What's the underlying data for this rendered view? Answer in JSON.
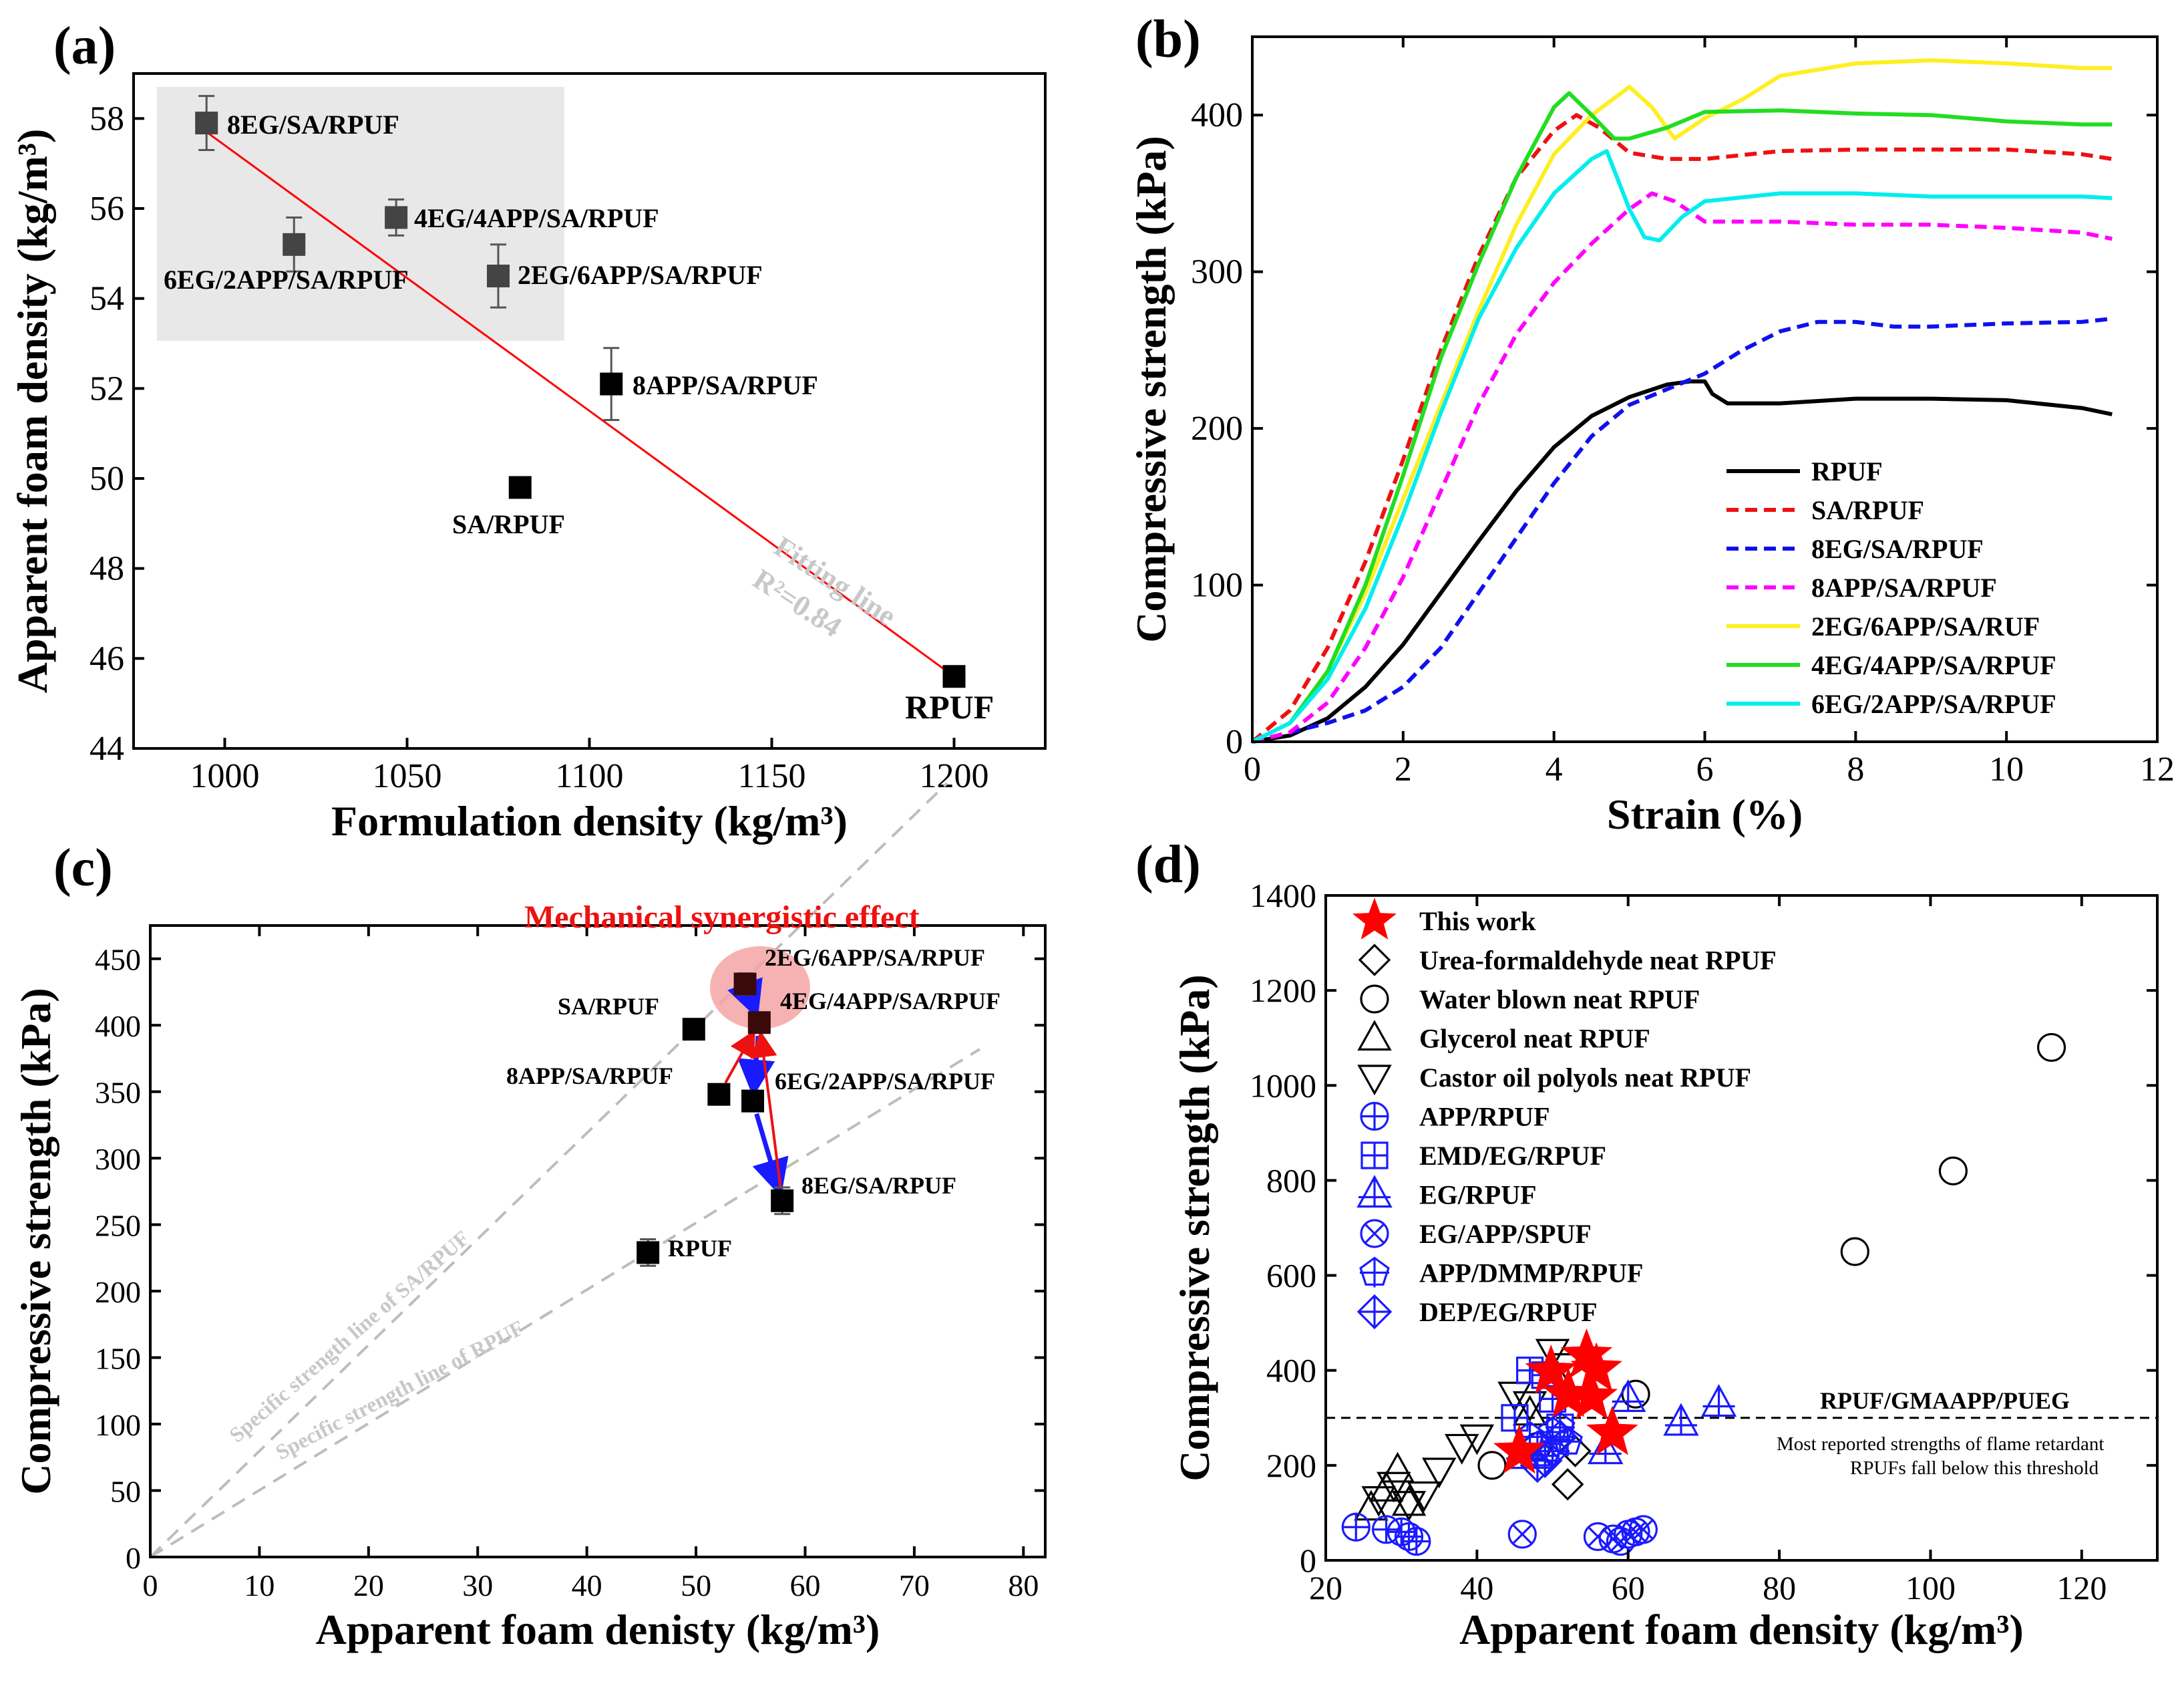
{
  "chart_data": [
    {
      "panel": "(a)",
      "type": "scatter",
      "xlabel": "Formulation density (kg/m³)",
      "ylabel": "Apparent foam density (kg/m³)",
      "xlim": [
        975,
        1225
      ],
      "ylim": [
        44,
        59
      ],
      "xticks": [
        1000,
        1050,
        1100,
        1150,
        1200
      ],
      "yticks": [
        44,
        46,
        48,
        50,
        52,
        54,
        56,
        58
      ],
      "points": [
        {
          "label": "8EG/SA/RPUF",
          "x": 995,
          "y": 57.9,
          "err": 0.6,
          "color": "#444444"
        },
        {
          "label": "6EG/2APP/SA/RPUF",
          "x": 1019,
          "y": 55.2,
          "err": 0.6,
          "color": "#444444"
        },
        {
          "label": "4EG/4APP/SA/RPUF",
          "x": 1047,
          "y": 55.8,
          "err": 0.4,
          "color": "#444444"
        },
        {
          "label": "2EG/6APP/SA/RPUF",
          "x": 1075,
          "y": 54.5,
          "err": 0.7,
          "color": "#444444"
        },
        {
          "label": "8APP/SA/RPUF",
          "x": 1106,
          "y": 52.1,
          "err": 0.8,
          "color": "#000000"
        },
        {
          "label": "SA/RPUF",
          "x": 1081,
          "y": 49.8,
          "err": 0,
          "color": "#000000"
        },
        {
          "label": "RPUF",
          "x": 1200,
          "y": 45.6,
          "err": 0,
          "color": "#000000"
        }
      ],
      "fit_line": {
        "x": [
          995,
          1200
        ],
        "y": [
          57.7,
          45.6
        ],
        "color": "#ff0000"
      },
      "annotations": [
        "Fitting line",
        "R²=0.84"
      ]
    },
    {
      "panel": "(b)",
      "type": "line",
      "xlabel": "Strain (%)",
      "ylabel": "Compressive strength (kPa)",
      "xlim": [
        0,
        12
      ],
      "ylim": [
        0,
        450
      ],
      "xticks": [
        0,
        2,
        4,
        6,
        8,
        10,
        12
      ],
      "yticks": [
        0,
        100,
        200,
        300,
        400
      ],
      "series": [
        {
          "name": "RPUF",
          "color": "#000000",
          "dash": "solid",
          "x": [
            0,
            0.5,
            1,
            1.5,
            2,
            2.5,
            3,
            3.5,
            4,
            4.5,
            5,
            5.5,
            5.8,
            6.0,
            6.1,
            6.3,
            7,
            8,
            9,
            10,
            11,
            11.4
          ],
          "y": [
            0,
            4,
            15,
            35,
            62,
            95,
            128,
            160,
            188,
            208,
            220,
            228,
            230,
            230,
            222,
            216,
            216,
            219,
            219,
            218,
            213,
            209
          ]
        },
        {
          "name": "SA/RPUF",
          "color": "#ee1111",
          "dash": "dashed",
          "x": [
            0,
            0.5,
            1,
            1.5,
            2,
            2.5,
            3,
            3.5,
            4,
            4.3,
            4.6,
            5,
            5.5,
            6,
            7,
            8,
            9,
            10,
            11,
            11.4
          ],
          "y": [
            0,
            20,
            60,
            115,
            180,
            250,
            310,
            360,
            390,
            400,
            392,
            376,
            372,
            372,
            377,
            378,
            378,
            378,
            375,
            372
          ]
        },
        {
          "name": "8EG/SA/RPUF",
          "color": "#1010ee",
          "dash": "dashed",
          "x": [
            0,
            1,
            1.5,
            2,
            2.5,
            3,
            3.5,
            4,
            4.5,
            5,
            5.5,
            6,
            6.5,
            7,
            7.5,
            8,
            8.5,
            9,
            10,
            11,
            11.4
          ],
          "y": [
            0,
            12,
            20,
            35,
            60,
            95,
            130,
            165,
            195,
            215,
            225,
            235,
            250,
            262,
            268,
            268,
            265,
            265,
            267,
            268,
            270
          ]
        },
        {
          "name": "8APP/SA/RPUF",
          "color": "#ff00ff",
          "dash": "dashed",
          "x": [
            0,
            0.5,
            1,
            1.5,
            2,
            2.5,
            3,
            3.5,
            4,
            4.5,
            5,
            5.3,
            5.6,
            6,
            7,
            8,
            9,
            10,
            11,
            11.4
          ],
          "y": [
            0,
            6,
            25,
            60,
            105,
            160,
            215,
            260,
            293,
            318,
            340,
            350,
            345,
            332,
            332,
            330,
            330,
            328,
            325,
            321
          ]
        },
        {
          "name": "2EG/6APP/SA/RUF",
          "color": "#ffee22",
          "dash": "solid",
          "x": [
            0,
            0.5,
            1,
            1.5,
            2,
            2.5,
            3,
            3.5,
            4,
            4.5,
            5,
            5.3,
            5.6,
            6,
            6.5,
            7,
            8,
            9,
            10,
            11,
            11.4
          ],
          "y": [
            0,
            12,
            45,
            95,
            155,
            215,
            275,
            330,
            375,
            400,
            418,
            405,
            385,
            398,
            410,
            425,
            433,
            435,
            433,
            430,
            430
          ]
        },
        {
          "name": "4EG/4APP/SA/RPUF",
          "color": "#22dd22",
          "dash": "solid",
          "x": [
            0,
            0.5,
            1,
            1.5,
            2,
            2.5,
            3,
            3.5,
            4,
            4.2,
            4.5,
            4.8,
            5,
            5.5,
            6,
            7,
            8,
            9,
            10,
            11,
            11.4
          ],
          "y": [
            0,
            12,
            45,
            100,
            170,
            245,
            305,
            360,
            405,
            414,
            400,
            385,
            385,
            392,
            402,
            403,
            401,
            400,
            396,
            394,
            394
          ]
        },
        {
          "name": "6EG/2APP/SA/RPUF",
          "color": "#00eeee",
          "dash": "solid",
          "x": [
            0,
            0.5,
            1,
            1.5,
            2,
            2.5,
            3,
            3.5,
            4,
            4.5,
            4.7,
            5,
            5.2,
            5.4,
            5.7,
            6,
            7,
            8,
            9,
            10,
            11,
            11.4
          ],
          "y": [
            0,
            12,
            40,
            85,
            145,
            210,
            270,
            315,
            350,
            372,
            377,
            340,
            322,
            320,
            335,
            345,
            350,
            350,
            348,
            348,
            348,
            347
          ]
        }
      ]
    },
    {
      "panel": "(c)",
      "type": "scatter",
      "xlabel": "Apparent foam denisty (kg/m³)",
      "ylabel": "Compressive strength (kPa)",
      "xlim": [
        0,
        82
      ],
      "ylim": [
        0,
        475
      ],
      "xticks": [
        0,
        10,
        20,
        30,
        40,
        50,
        60,
        70,
        80
      ],
      "yticks": [
        0,
        50,
        100,
        150,
        200,
        250,
        300,
        350,
        400,
        450
      ],
      "title": "Mechanical synergistic effect",
      "points": [
        {
          "label": "2EG/6APP/SA/RPUF",
          "x": 54.5,
          "y": 431,
          "err": 8,
          "color": "#3a0a0a"
        },
        {
          "label": "4EG/4APP/SA/RPUF",
          "x": 55.8,
          "y": 402,
          "err": 6,
          "color": "#3a0a0a"
        },
        {
          "label": "SA/RPUF",
          "x": 49.8,
          "y": 397,
          "err": 0,
          "color": "#000000"
        },
        {
          "label": "8APP/SA/RPUF",
          "x": 52.1,
          "y": 348,
          "err": 0,
          "color": "#000000"
        },
        {
          "label": "6EG/2APP/SA/RPUF",
          "x": 55.2,
          "y": 343,
          "err": 0,
          "color": "#000000"
        },
        {
          "label": "8EG/SA/RPUF",
          "x": 57.9,
          "y": 268,
          "err": 10,
          "color": "#000000"
        },
        {
          "label": "RPUF",
          "x": 45.6,
          "y": 229,
          "err": 10,
          "color": "#000000"
        }
      ],
      "reference_lines": [
        {
          "label": "Specific strength line of SA/RPUF",
          "x": [
            0,
            73
          ],
          "y": [
            0,
            582
          ]
        },
        {
          "label": "Specific strength line of RPUF",
          "x": [
            0,
            76
          ],
          "y": [
            0,
            382
          ]
        }
      ]
    },
    {
      "panel": "(d)",
      "type": "scatter",
      "xlabel": "Apparent foam density (kg/m³)",
      "ylabel": "Compressive strength (kPa)",
      "xlim": [
        20,
        130
      ],
      "ylim": [
        0,
        1400
      ],
      "xticks": [
        20,
        40,
        60,
        80,
        100,
        120
      ],
      "yticks": [
        0,
        200,
        400,
        600,
        800,
        1000,
        1200,
        1400
      ],
      "threshold": {
        "y": 300,
        "label": "RPUF/GMAAPP/PUEG",
        "note_1": "Most reported strengths of flame retardant",
        "note_2": "RPUFs fall below this threshold"
      },
      "series": [
        {
          "name": "This work",
          "marker": "star",
          "color": "#ff0000",
          "x": [
            45.6,
            49.8,
            52.1,
            54.5,
            55.8,
            55.2,
            57.9
          ],
          "y": [
            229,
            397,
            348,
            431,
            402,
            343,
            268
          ]
        },
        {
          "name": "Urea-formaldehyde neat RPUF",
          "marker": "diamond",
          "color": "#000000",
          "x": [
            52,
            53
          ],
          "y": [
            160,
            230
          ]
        },
        {
          "name": "Water blown neat RPUF",
          "marker": "circle",
          "color": "#000000",
          "x": [
            42,
            48,
            61,
            90,
            103,
            116
          ],
          "y": [
            200,
            240,
            350,
            650,
            820,
            1080
          ]
        },
        {
          "name": "Glycerol neat RPUF",
          "marker": "triangle-up",
          "color": "#000000",
          "x": [
            26,
            28,
            29.5,
            31,
            47
          ],
          "y": [
            110,
            150,
            190,
            120,
            310
          ]
        },
        {
          "name": "Castor oil polyols neat RPUF",
          "marker": "triangle-down",
          "color": "#000000",
          "x": [
            27,
            29,
            31,
            33,
            35,
            38,
            40,
            45,
            47,
            50,
            52
          ],
          "y": [
            130,
            160,
            120,
            140,
            190,
            240,
            260,
            350,
            330,
            440,
            410
          ]
        },
        {
          "name": "APP/RPUF",
          "marker": "circle-plus",
          "color": "#1a1aff",
          "x": [
            24,
            28,
            30,
            31,
            32
          ],
          "y": [
            70,
            65,
            60,
            50,
            40
          ]
        },
        {
          "name": "EMD/EG/RPUF",
          "marker": "square-plus",
          "color": "#1a1aff",
          "x": [
            45,
            47,
            49,
            50,
            51
          ],
          "y": [
            300,
            400,
            390,
            340,
            280
          ]
        },
        {
          "name": "EG/RPUF",
          "marker": "triangle-plus",
          "color": "#1a1aff",
          "x": [
            46,
            57,
            60,
            67,
            72
          ],
          "y": [
            220,
            230,
            340,
            290,
            330
          ]
        },
        {
          "name": "EG/APP/SPUF",
          "marker": "circle-x",
          "color": "#1a1aff",
          "x": [
            46,
            56,
            58,
            59,
            60,
            61,
            62
          ],
          "y": [
            55,
            50,
            45,
            40,
            55,
            60,
            65
          ]
        },
        {
          "name": "APP/DMMP/RPUF",
          "marker": "pentagon-plus",
          "color": "#1a1aff",
          "x": [
            47,
            48,
            49,
            50,
            51,
            52
          ],
          "y": [
            260,
            240,
            220,
            270,
            280,
            250
          ]
        },
        {
          "name": "DEP/EG/RPUF",
          "marker": "diamond-plus",
          "color": "#1a1aff",
          "x": [
            48,
            49,
            50,
            51
          ],
          "y": [
            200,
            210,
            230,
            260
          ]
        }
      ]
    }
  ],
  "panel_labels": {
    "a": "(a)",
    "b": "(b)",
    "c": "(c)",
    "d": "(d)"
  }
}
